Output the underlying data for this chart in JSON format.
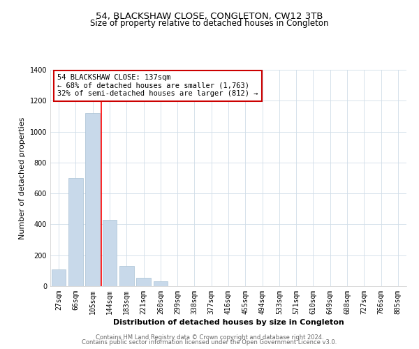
{
  "title": "54, BLACKSHAW CLOSE, CONGLETON, CW12 3TB",
  "subtitle": "Size of property relative to detached houses in Congleton",
  "bar_heights": [
    110,
    700,
    1120,
    430,
    130,
    55,
    30,
    0,
    0,
    0,
    0,
    0,
    0,
    0,
    0,
    0,
    0,
    0,
    0,
    0,
    0
  ],
  "bin_labels": [
    "27sqm",
    "66sqm",
    "105sqm",
    "144sqm",
    "183sqm",
    "221sqm",
    "260sqm",
    "299sqm",
    "338sqm",
    "377sqm",
    "416sqm",
    "455sqm",
    "494sqm",
    "533sqm",
    "571sqm",
    "610sqm",
    "649sqm",
    "688sqm",
    "727sqm",
    "766sqm",
    "805sqm"
  ],
  "bar_color": "#c8d9ea",
  "bar_edge_color": "#a8c0d4",
  "redline_x": 2.5,
  "annotation_line1": "54 BLACKSHAW CLOSE: 137sqm",
  "annotation_line2": "← 68% of detached houses are smaller (1,763)",
  "annotation_line3": "32% of semi-detached houses are larger (812) →",
  "xlabel": "Distribution of detached houses by size in Congleton",
  "ylabel": "Number of detached properties",
  "ylim": [
    0,
    1400
  ],
  "yticks": [
    0,
    200,
    400,
    600,
    800,
    1000,
    1200,
    1400
  ],
  "footer1": "Contains HM Land Registry data © Crown copyright and database right 2024.",
  "footer2": "Contains public sector information licensed under the Open Government Licence v3.0.",
  "background_color": "#ffffff",
  "grid_color": "#d0dde8",
  "title_fontsize": 9.5,
  "subtitle_fontsize": 8.5,
  "axis_label_fontsize": 8.0,
  "tick_fontsize": 7.0,
  "annotation_fontsize": 7.5,
  "footer_fontsize": 6.0
}
